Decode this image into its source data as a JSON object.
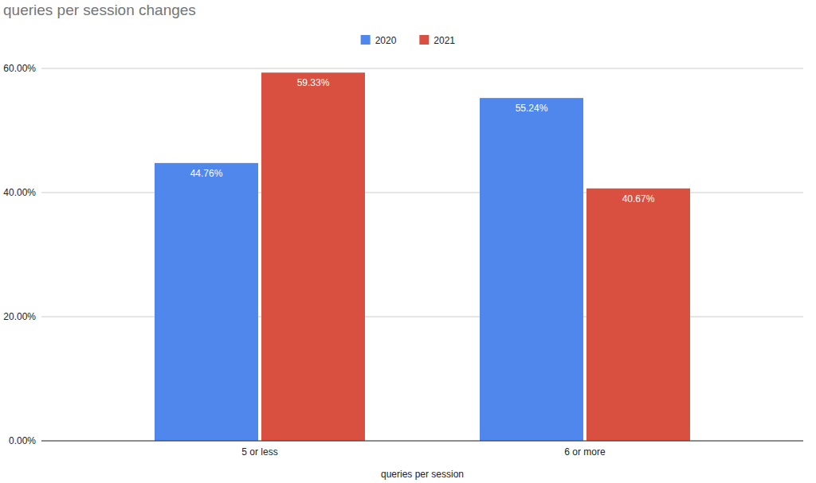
{
  "chart_data": {
    "type": "bar",
    "title": "queries per session changes",
    "xlabel": "queries per session",
    "categories": [
      "5 or less",
      "6 or more"
    ],
    "series": [
      {
        "name": "2020",
        "color": "#5087ec",
        "values": [
          44.76,
          55.24
        ],
        "value_labels": [
          "44.76%",
          "55.24%"
        ]
      },
      {
        "name": "2021",
        "color": "#d95040",
        "values": [
          59.33,
          40.67
        ],
        "value_labels": [
          "59.33%",
          "40.67%"
        ]
      }
    ],
    "ylim": [
      0,
      60
    ],
    "yticks": [
      {
        "value": 0,
        "label": "0.00%"
      },
      {
        "value": 20,
        "label": "20.00%"
      },
      {
        "value": 40,
        "label": "40.00%"
      },
      {
        "value": 60,
        "label": "60.00%"
      }
    ],
    "grid": true,
    "legend": "top",
    "data_labels": true
  }
}
